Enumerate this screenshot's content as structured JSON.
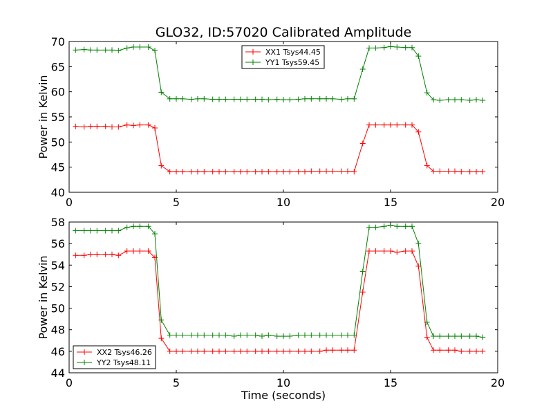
{
  "figure": {
    "title": "GLO32, ID:57020 Calibrated Amplitude"
  },
  "chart_data": [
    {
      "type": "line",
      "title": "GLO32, ID:57020 Calibrated Amplitude",
      "xlabel": "",
      "ylabel": "Power in Kelvin",
      "xlim": [
        0,
        20
      ],
      "ylim": [
        40,
        70
      ],
      "xticks": [
        0,
        5,
        10,
        15,
        20
      ],
      "yticks": [
        40,
        45,
        50,
        55,
        60,
        65,
        70
      ],
      "grid": false,
      "legend_position": "top-center",
      "x": [
        0.3,
        0.7,
        1.0,
        1.3,
        1.7,
        2.0,
        2.3,
        2.7,
        3.0,
        3.3,
        3.7,
        4.0,
        4.3,
        4.7,
        5.0,
        5.3,
        5.7,
        6.0,
        6.3,
        6.7,
        7.0,
        7.3,
        7.7,
        8.0,
        8.3,
        8.7,
        9.0,
        9.3,
        9.7,
        10.0,
        10.3,
        10.7,
        11.0,
        11.3,
        11.7,
        12.0,
        12.3,
        12.7,
        13.0,
        13.3,
        13.7,
        14.0,
        14.3,
        14.7,
        15.0,
        15.3,
        15.7,
        16.0,
        16.3,
        16.7,
        17.0,
        17.3,
        17.7,
        18.0,
        18.3,
        18.7,
        19.0,
        19.3
      ],
      "series": [
        {
          "name": "XX1 Tsys44.45",
          "color": "#ff0000",
          "values": [
            53.1,
            53.0,
            53.1,
            53.1,
            53.1,
            53.0,
            53.0,
            53.4,
            53.3,
            53.4,
            53.4,
            52.8,
            45.3,
            44.1,
            44.1,
            44.1,
            44.1,
            44.1,
            44.1,
            44.1,
            44.1,
            44.1,
            44.1,
            44.1,
            44.1,
            44.1,
            44.1,
            44.1,
            44.1,
            44.1,
            44.1,
            44.1,
            44.1,
            44.2,
            44.2,
            44.2,
            44.2,
            44.2,
            44.2,
            44.1,
            49.7,
            53.4,
            53.4,
            53.4,
            53.4,
            53.4,
            53.4,
            53.4,
            52.0,
            45.3,
            44.2,
            44.2,
            44.2,
            44.2,
            44.1,
            44.1,
            44.1,
            44.1
          ]
        },
        {
          "name": "YY1 Tsys59.45",
          "color": "#008000",
          "values": [
            68.3,
            68.4,
            68.3,
            68.3,
            68.3,
            68.3,
            68.2,
            68.7,
            68.9,
            68.9,
            68.9,
            68.2,
            59.9,
            58.6,
            58.6,
            58.6,
            58.5,
            58.6,
            58.6,
            58.5,
            58.5,
            58.5,
            58.5,
            58.5,
            58.5,
            58.5,
            58.5,
            58.4,
            58.5,
            58.4,
            58.4,
            58.5,
            58.6,
            58.6,
            58.6,
            58.6,
            58.6,
            58.5,
            58.6,
            58.6,
            64.5,
            68.7,
            68.7,
            68.8,
            69.0,
            68.9,
            68.8,
            68.8,
            67.1,
            59.8,
            58.4,
            58.3,
            58.4,
            58.4,
            58.4,
            58.3,
            58.4,
            58.3
          ]
        }
      ]
    },
    {
      "type": "line",
      "title": "",
      "xlabel": "Time (seconds)",
      "ylabel": "Power in Kelvin",
      "xlim": [
        0,
        20
      ],
      "ylim": [
        44,
        58
      ],
      "xticks": [
        0,
        5,
        10,
        15,
        20
      ],
      "yticks": [
        44,
        46,
        48,
        50,
        52,
        54,
        56,
        58
      ],
      "grid": false,
      "legend_position": "bottom-left",
      "x": [
        0.3,
        0.7,
        1.0,
        1.3,
        1.7,
        2.0,
        2.3,
        2.7,
        3.0,
        3.3,
        3.7,
        4.0,
        4.3,
        4.7,
        5.0,
        5.3,
        5.7,
        6.0,
        6.3,
        6.7,
        7.0,
        7.3,
        7.7,
        8.0,
        8.3,
        8.7,
        9.0,
        9.3,
        9.7,
        10.0,
        10.3,
        10.7,
        11.0,
        11.3,
        11.7,
        12.0,
        12.3,
        12.7,
        13.0,
        13.3,
        13.7,
        14.0,
        14.3,
        14.7,
        15.0,
        15.3,
        15.7,
        16.0,
        16.3,
        16.7,
        17.0,
        17.3,
        17.7,
        18.0,
        18.3,
        18.7,
        19.0,
        19.3
      ],
      "series": [
        {
          "name": "XX2 Tsys46.26",
          "color": "#ff0000",
          "values": [
            54.9,
            54.9,
            55.0,
            55.0,
            55.0,
            55.0,
            54.9,
            55.3,
            55.3,
            55.3,
            55.3,
            54.7,
            47.2,
            46.0,
            46.0,
            46.0,
            46.0,
            46.0,
            46.0,
            46.0,
            46.0,
            46.0,
            46.0,
            46.0,
            46.0,
            46.0,
            46.0,
            46.0,
            46.0,
            46.0,
            46.0,
            46.0,
            46.0,
            46.0,
            46.0,
            46.1,
            46.1,
            46.1,
            46.1,
            46.1,
            51.5,
            55.3,
            55.3,
            55.3,
            55.3,
            55.2,
            55.3,
            55.3,
            53.9,
            47.3,
            46.1,
            46.1,
            46.1,
            46.1,
            46.0,
            46.0,
            46.0,
            46.0
          ]
        },
        {
          "name": "YY2 Tsys48.11",
          "color": "#008000",
          "values": [
            57.2,
            57.2,
            57.2,
            57.2,
            57.2,
            57.2,
            57.2,
            57.5,
            57.6,
            57.6,
            57.6,
            56.9,
            48.9,
            47.5,
            47.5,
            47.5,
            47.5,
            47.5,
            47.5,
            47.5,
            47.5,
            47.5,
            47.4,
            47.5,
            47.5,
            47.5,
            47.4,
            47.5,
            47.4,
            47.4,
            47.4,
            47.5,
            47.5,
            47.5,
            47.5,
            47.5,
            47.5,
            47.5,
            47.5,
            47.5,
            53.4,
            57.5,
            57.5,
            57.6,
            57.7,
            57.6,
            57.6,
            57.6,
            56.0,
            48.7,
            47.4,
            47.4,
            47.4,
            47.4,
            47.4,
            47.4,
            47.4,
            47.3
          ]
        }
      ]
    }
  ]
}
